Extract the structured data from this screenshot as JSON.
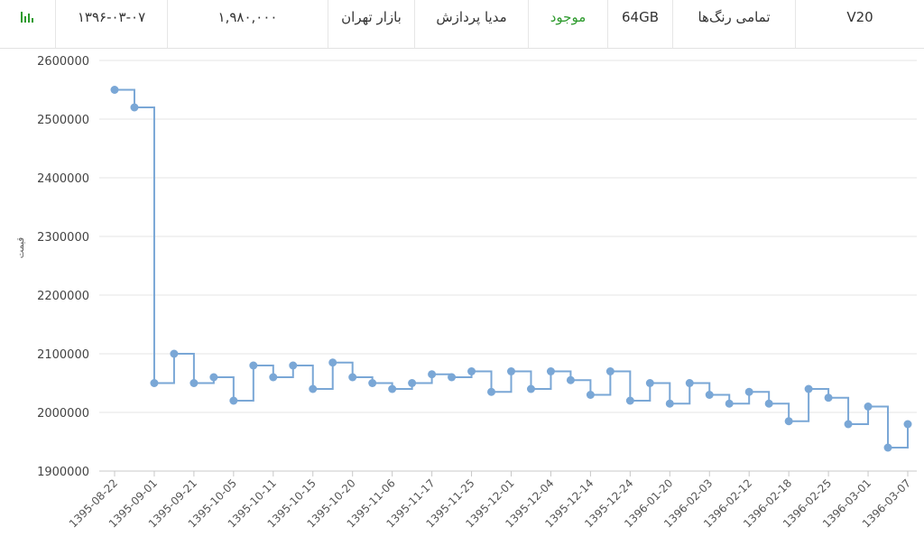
{
  "header": {
    "date": "۱۳۹۶-۰۳-۰۷",
    "price": "۱,۹۸۰,۰۰۰",
    "market": "بازار تهران",
    "seller": "مدیا پردازش",
    "status": "موجود",
    "storage": "64GB",
    "color": "تمامی رنگ‌ها",
    "model": "V20",
    "chart_icon": "bar-chart-icon",
    "status_color": "#2e9b2e"
  },
  "chart_data": {
    "type": "line",
    "step": "start",
    "ylabel": "قیمت",
    "ylim": [
      1900000,
      2600000
    ],
    "yticks": [
      "1900000",
      "2000000",
      "2100000",
      "2200000",
      "2300000",
      "2400000",
      "2500000",
      "2600000"
    ],
    "yvalues": [
      1900000,
      2000000,
      2100000,
      2200000,
      2300000,
      2400000,
      2500000,
      2600000
    ],
    "grid": true,
    "line_color": "#7aa7d6",
    "point_color": "#7aa7d6",
    "xtick_labels": [
      "1395-08-22",
      "1395-09-01",
      "1395-09-21",
      "1395-10-05",
      "1395-10-11",
      "1395-10-15",
      "1395-10-20",
      "1395-11-06",
      "1395-11-17",
      "1395-11-25",
      "1395-12-01",
      "1395-12-04",
      "1395-12-14",
      "1395-12-24",
      "1396-01-20",
      "1396-02-03",
      "1396-02-12",
      "1396-02-18",
      "1396-02-25",
      "1396-03-01",
      "1396-03-07"
    ],
    "series": [
      {
        "values": [
          2550000,
          2520000,
          2050000,
          2100000,
          2050000,
          2060000,
          2020000,
          2080000,
          2060000,
          2080000,
          2040000,
          2085000,
          2060000,
          2050000,
          2040000,
          2050000,
          2065000,
          2060000,
          2070000,
          2035000,
          2070000,
          2040000,
          2070000,
          2055000,
          2030000,
          2070000,
          2020000,
          2050000,
          2015000,
          2050000,
          2030000,
          2015000,
          2035000,
          2015000,
          1985000,
          2040000,
          2025000,
          1980000,
          2010000,
          1940000,
          1980000
        ]
      }
    ]
  }
}
